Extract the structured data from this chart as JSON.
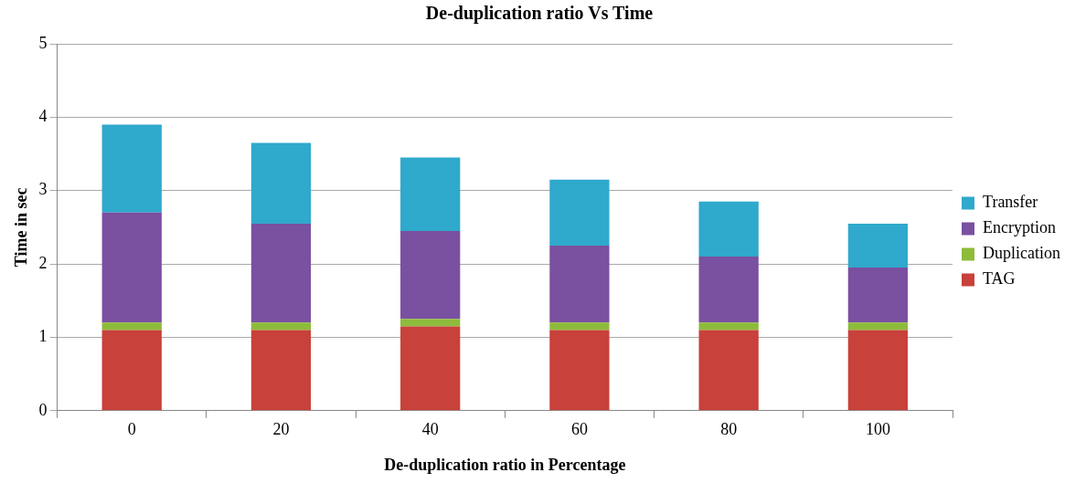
{
  "chart_data": {
    "type": "bar",
    "title": "De-duplication ratio Vs Time",
    "xlabel": "De-duplication ratio in Percentage",
    "ylabel": "Time in sec",
    "categories": [
      "0",
      "20",
      "40",
      "60",
      "80",
      "100"
    ],
    "stacked": true,
    "series": [
      {
        "name": "TAG",
        "color": "#c8413a",
        "values": [
          1.1,
          1.1,
          1.15,
          1.1,
          1.1,
          1.1
        ]
      },
      {
        "name": "Duplication",
        "color": "#8dbb3a",
        "values": [
          0.1,
          0.1,
          0.1,
          0.1,
          0.1,
          0.1
        ]
      },
      {
        "name": "Encryption",
        "color": "#7a50a0",
        "values": [
          1.5,
          1.35,
          1.2,
          1.05,
          0.9,
          0.75
        ]
      },
      {
        "name": "Transfer",
        "color": "#2fa9cc",
        "values": [
          1.2,
          1.1,
          1.0,
          0.9,
          0.75,
          0.6
        ]
      }
    ],
    "ylim": [
      0,
      5
    ],
    "yticks": [
      0,
      1,
      2,
      3,
      4,
      5
    ],
    "grid": "y",
    "legend": "right"
  }
}
